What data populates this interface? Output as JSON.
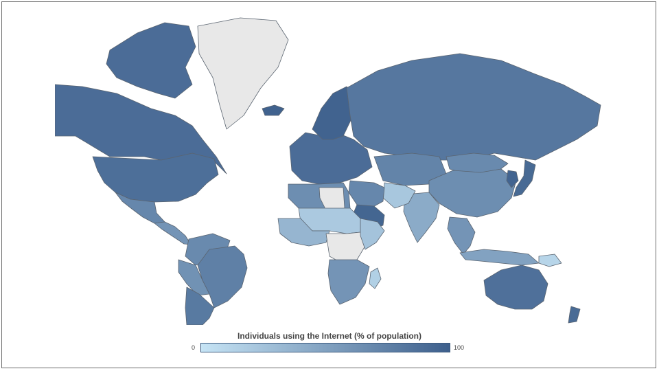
{
  "legend": {
    "title": "Individuals using the Internet (% of population)",
    "min_label": "0",
    "max_label": "100",
    "min_value": 0,
    "max_value": 100,
    "color_low": "#c6e4f5",
    "color_high": "#3d5f8c",
    "no_data_color": "#e8e8e8"
  },
  "regions": [
    {
      "name": "Greenland",
      "value": null
    },
    {
      "name": "Alaska / Canada",
      "value": 90
    },
    {
      "name": "Canada Arctic Islands",
      "value": 90
    },
    {
      "name": "United States",
      "value": 88
    },
    {
      "name": "Mexico",
      "value": 70
    },
    {
      "name": "Central America",
      "value": 60
    },
    {
      "name": "Venezuela / Colombia",
      "value": 68
    },
    {
      "name": "Brazil",
      "value": 75
    },
    {
      "name": "Peru / Bolivia",
      "value": 62
    },
    {
      "name": "Chile / Argentina",
      "value": 80
    },
    {
      "name": "Iceland",
      "value": 98
    },
    {
      "name": "Western Europe",
      "value": 90
    },
    {
      "name": "Scandinavia",
      "value": 97
    },
    {
      "name": "Russia",
      "value": 82
    },
    {
      "name": "Kazakhstan / Central Asia",
      "value": 72
    },
    {
      "name": "Mongolia",
      "value": 68
    },
    {
      "name": "China",
      "value": 65
    },
    {
      "name": "Japan",
      "value": 92
    },
    {
      "name": "Korea",
      "value": 96
    },
    {
      "name": "India",
      "value": 43
    },
    {
      "name": "Pakistan / Afghanistan",
      "value": 22
    },
    {
      "name": "Iran / Middle East",
      "value": 70
    },
    {
      "name": "Arabian Peninsula",
      "value": 95
    },
    {
      "name": "Southeast Asia",
      "value": 60
    },
    {
      "name": "Indonesia",
      "value": 50
    },
    {
      "name": "Papua New Guinea",
      "value": 11
    },
    {
      "name": "Australia",
      "value": 87
    },
    {
      "name": "New Zealand",
      "value": 91
    },
    {
      "name": "North Africa",
      "value": 65
    },
    {
      "name": "Sahel",
      "value": 20
    },
    {
      "name": "Libya",
      "value": null
    },
    {
      "name": "West Africa",
      "value": 35
    },
    {
      "name": "Central Africa",
      "value": null
    },
    {
      "name": "East Africa",
      "value": 25
    },
    {
      "name": "Southern Africa",
      "value": 60
    },
    {
      "name": "Madagascar",
      "value": 15
    }
  ]
}
